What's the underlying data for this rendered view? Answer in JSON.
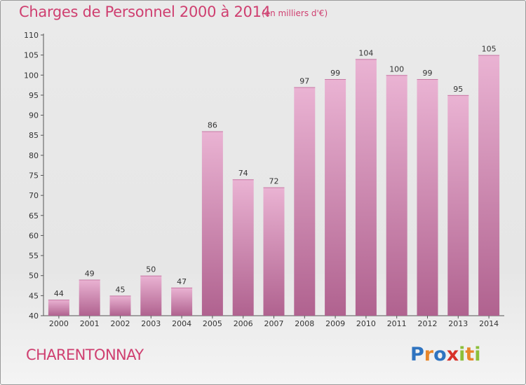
{
  "title": "Charges de Personnel 2000 à 2014",
  "subtitle": "(en milliers d'€)",
  "commune": "CHARENTONNAY",
  "logo": {
    "letters": [
      "P",
      "r",
      "o",
      "x",
      "i",
      "t",
      "i"
    ],
    "colors": [
      "#2f74c0",
      "#e7862a",
      "#2f74c0",
      "#d8312a",
      "#8cbf3a",
      "#e7862a",
      "#8cbf3a"
    ]
  },
  "colors": {
    "bar_light": "#eab3d3",
    "bar_dark": "#b0628f",
    "title": "#cf3f70"
  },
  "chart_data": {
    "type": "bar",
    "categories": [
      "2000",
      "2001",
      "2002",
      "2003",
      "2004",
      "2005",
      "2006",
      "2007",
      "2008",
      "2009",
      "2010",
      "2011",
      "2012",
      "2013",
      "2014"
    ],
    "values": [
      44,
      49,
      45,
      50,
      47,
      86,
      74,
      72,
      97,
      99,
      104,
      100,
      99,
      95,
      105
    ],
    "yticks": [
      40,
      45,
      50,
      55,
      60,
      65,
      70,
      75,
      80,
      85,
      90,
      95,
      100,
      105,
      110
    ],
    "ylim": [
      40,
      110
    ],
    "grid": false,
    "legend": "none"
  }
}
